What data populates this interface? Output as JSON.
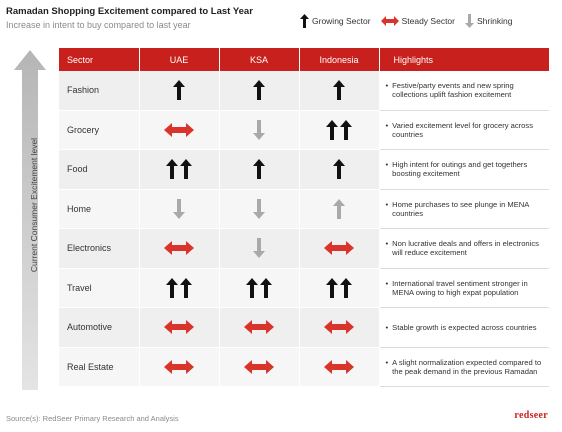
{
  "title": "Ramadan Shopping Excitement compared to Last Year",
  "subtitle": "Increase in intent to buy compared to last year",
  "legend": [
    {
      "icon": "up-arrow-icon",
      "label": "Growing Sector"
    },
    {
      "icon": "double-arrow-icon",
      "label": "Steady Sector"
    },
    {
      "icon": "down-arrow-icon",
      "label": "Shrinking"
    }
  ],
  "y_axis_label": "Current Consumer Excitement level",
  "columns": [
    "Sector",
    "UAE",
    "KSA",
    "Indonesia",
    "Highlights"
  ],
  "rows": [
    {
      "sector": "Fashion",
      "uae": "up",
      "ksa": "up",
      "indonesia": "up",
      "highlight": "Festive/party events and new spring collections uplift fashion excitement"
    },
    {
      "sector": "Grocery",
      "uae": "steady",
      "ksa": "down",
      "indonesia": "up2",
      "highlight": "Varied excitement level for grocery across countries"
    },
    {
      "sector": "Food",
      "uae": "up2",
      "ksa": "up",
      "indonesia": "up",
      "highlight": "High intent for outings and get togethers boosting excitement"
    },
    {
      "sector": "Home",
      "uae": "down",
      "ksa": "down",
      "indonesia": "down-up",
      "highlight": "Home purchases to see plunge in MENA countries"
    },
    {
      "sector": "Electronics",
      "uae": "steady",
      "ksa": "down",
      "indonesia": "steady",
      "highlight": "Non lucrative deals and offers in electronics will reduce excitement"
    },
    {
      "sector": "Travel",
      "uae": "up2",
      "ksa": "up2",
      "indonesia": "up2",
      "highlight": "International travel sentiment stronger in MENA owing to high expat population"
    },
    {
      "sector": "Automotive",
      "uae": "steady",
      "ksa": "steady",
      "indonesia": "steady",
      "highlight": "Stable growth is expected across countries"
    },
    {
      "sector": "Real Estate",
      "uae": "steady",
      "ksa": "steady",
      "indonesia": "steady",
      "highlight": "A slight normalization expected compared to the peak demand in the previous Ramadan"
    }
  ],
  "colors": {
    "accent": "#c8211d",
    "up": "#111111",
    "down": "#a9a9a9",
    "steady": "#d9342b"
  },
  "footer": "Source(s): RedSeer Primary Research and Analysis",
  "brand": "redseer"
}
